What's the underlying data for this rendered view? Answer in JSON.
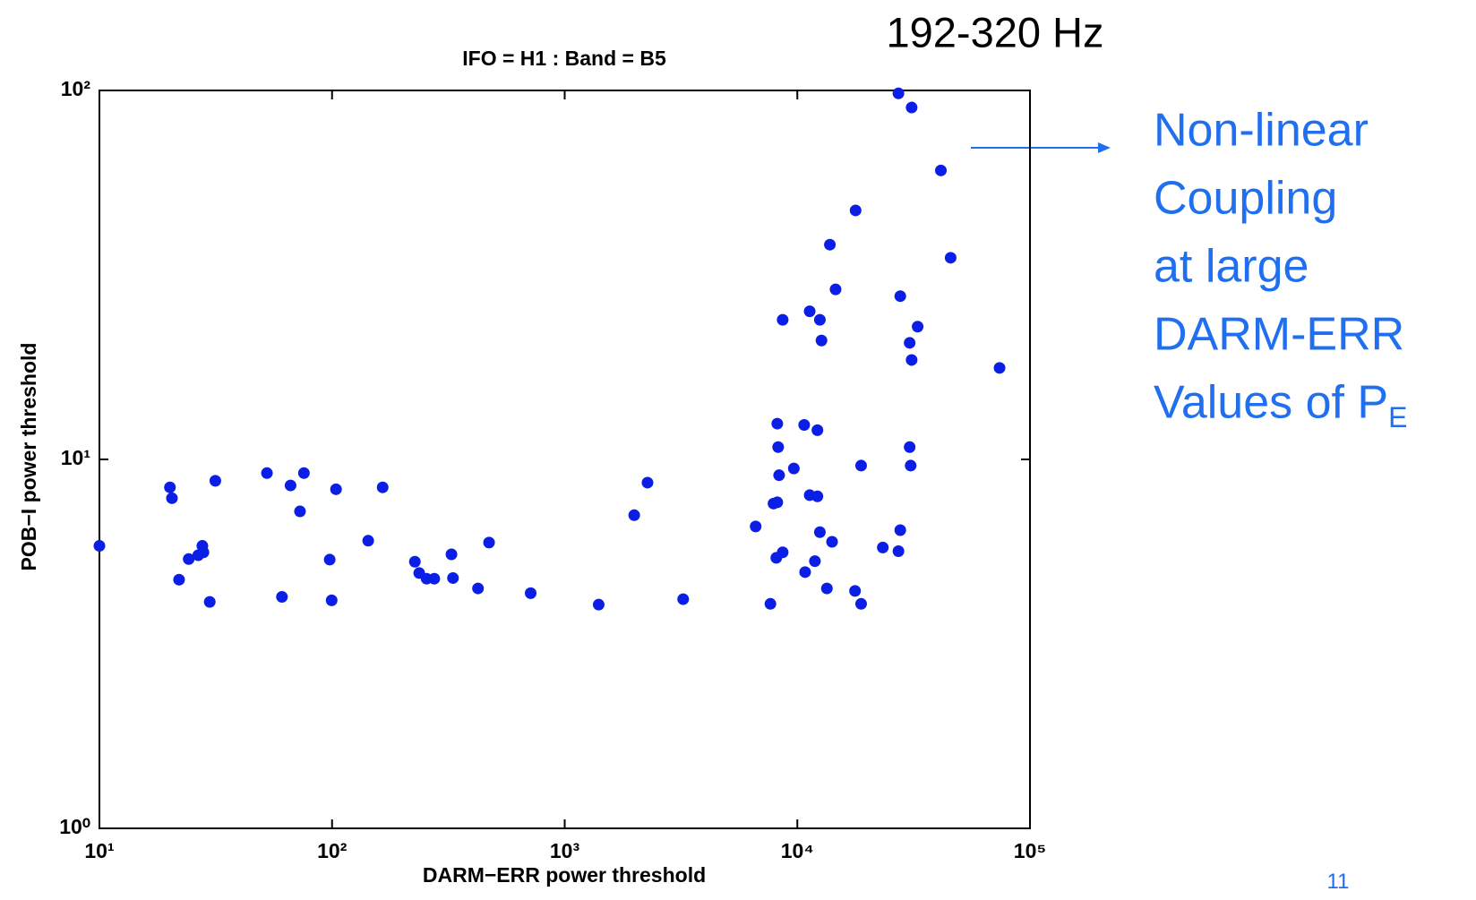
{
  "header": "192-320 Hz",
  "annotation": {
    "lines": [
      "Non-linear",
      "Coupling",
      "at large",
      "DARM-ERR",
      "Values of P"
    ],
    "subscript": "E"
  },
  "page_number": "11",
  "chart_data": {
    "type": "scatter",
    "title": "IFO = H1 : Band = B5",
    "x_label": "DARM−ERR power threshold",
    "y_label": "POB−I power threshold",
    "log_x": true,
    "log_y": true,
    "color": "#0b1ee6",
    "xlim": [
      10,
      100000
    ],
    "ylim": [
      1,
      100
    ],
    "xticks": [
      {
        "value": 10,
        "label": "10¹"
      },
      {
        "value": 100,
        "label": "10²"
      },
      {
        "value": 1000,
        "label": "10³"
      },
      {
        "value": 10000,
        "label": "10⁴"
      },
      {
        "value": 100000,
        "label": "10⁵"
      }
    ],
    "yticks": [
      {
        "value": 1,
        "label": "10⁰"
      },
      {
        "value": 10,
        "label": "10¹"
      },
      {
        "value": 100,
        "label": "10²"
      }
    ],
    "x": [
      10,
      20.1,
      20.5,
      22,
      24.2,
      26.6,
      27.7,
      28,
      29.8,
      31.5,
      52.5,
      60.9,
      66.3,
      72.8,
      75.7,
      97.7,
      99.6,
      104,
      143,
      165,
      227,
      237,
      255,
      275,
      326,
      331,
      424,
      473,
      714,
      1400,
      1990,
      2270,
      3230,
      6620,
      7660,
      7900,
      8200,
      8200,
      8270,
      8350,
      8120,
      8650,
      8650,
      9660,
      10800,
      10700,
      11300,
      11300,
      12200,
      11900,
      12200,
      12500,
      12500,
      12700,
      13400,
      13800,
      14100,
      14600,
      17700,
      17800,
      18800,
      18800,
      23300,
      27200,
      27700,
      27700,
      27200,
      31000,
      30400,
      30400,
      30700,
      31000,
      32900,
      41400,
      45600,
      74000
    ],
    "y": [
      5.83,
      8.4,
      7.85,
      4.72,
      5.37,
      5.5,
      5.83,
      5.6,
      4.11,
      8.75,
      9.18,
      4.24,
      8.5,
      7.23,
      9.18,
      5.35,
      4.15,
      8.3,
      6.02,
      8.4,
      5.28,
      4.92,
      4.75,
      4.75,
      5.53,
      4.77,
      4.47,
      5.95,
      4.34,
      4.04,
      7.06,
      8.65,
      4.18,
      6.58,
      4.06,
      7.59,
      7.65,
      12.5,
      10.8,
      9.06,
      5.41,
      5.6,
      23.9,
      9.45,
      4.95,
      12.4,
      25.2,
      8,
      7.94,
      5.3,
      12,
      23.9,
      6.35,
      21,
      4.47,
      38.2,
      5.98,
      28.9,
      4.4,
      47.3,
      9.62,
      4.06,
      5.77,
      98.2,
      27.7,
      6.43,
      5.64,
      89.9,
      20.7,
      10.8,
      9.62,
      18.6,
      22.9,
      60.7,
      35.2,
      17.7
    ]
  }
}
